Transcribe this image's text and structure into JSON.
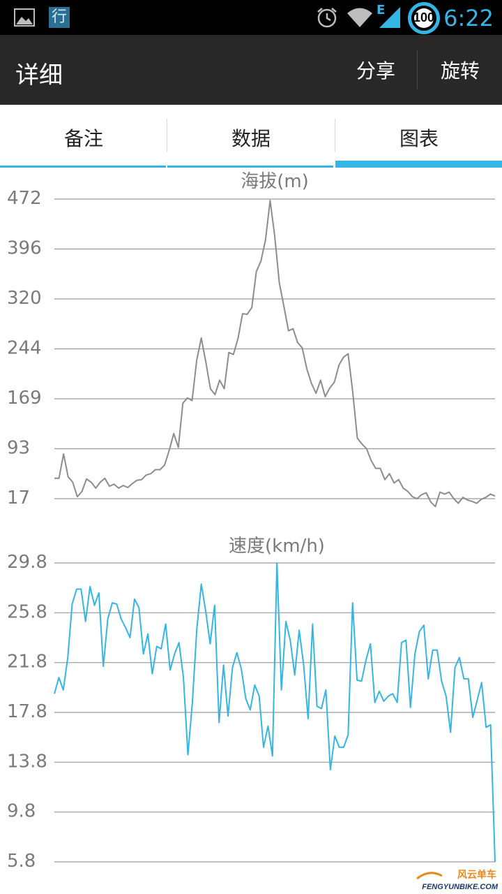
{
  "status_bar": {
    "time": "6:22",
    "battery": "100",
    "notification_char": "行",
    "network": "E",
    "icons": [
      "image-icon",
      "app-notification-icon",
      "alarm-icon",
      "wifi-icon",
      "signal-icon",
      "battery-icon"
    ]
  },
  "action_bar": {
    "title": "详细",
    "share_label": "分享",
    "rotate_label": "旋转"
  },
  "tabs": [
    {
      "label": "备注",
      "selected": false
    },
    {
      "label": "数据",
      "selected": false
    },
    {
      "label": "图表",
      "selected": true
    }
  ],
  "watermark": {
    "cn": "风云单车",
    "en": "FENGYUNBIKE.COM"
  },
  "chart_data": [
    {
      "type": "line",
      "title": "海拔(m)",
      "color": "#8c8c8c",
      "y_ticks": [
        "472",
        "396",
        "320",
        "244",
        "169",
        "93",
        "17"
      ],
      "ylim": [
        17,
        472
      ],
      "grid": true,
      "values": [
        48,
        48,
        85,
        50,
        42,
        20,
        28,
        47,
        42,
        33,
        42,
        48,
        36,
        39,
        33,
        37,
        34,
        40,
        45,
        46,
        53,
        55,
        61,
        61,
        68,
        90,
        116,
        95,
        162,
        170,
        166,
        227,
        261,
        224,
        184,
        175,
        197,
        184,
        239,
        236,
        260,
        298,
        297,
        307,
        362,
        378,
        410,
        470,
        416,
        345,
        309,
        272,
        275,
        254,
        246,
        214,
        192,
        177,
        197,
        172,
        185,
        194,
        220,
        232,
        237,
        179,
        109,
        100,
        93,
        75,
        63,
        63,
        46,
        55,
        41,
        46,
        33,
        28,
        20,
        17,
        23,
        26,
        12,
        5,
        27,
        24,
        27,
        17,
        10,
        19,
        15,
        13,
        10,
        16,
        19,
        24,
        21
      ]
    },
    {
      "type": "line",
      "title": "速度(km/h)",
      "color": "#33b5e5",
      "y_ticks": [
        "29.8",
        "25.8",
        "21.8",
        "17.8",
        "13.8",
        "9.8",
        "5.8"
      ],
      "ylim": [
        5.8,
        29.8
      ],
      "grid": true,
      "values": [
        19.3,
        20.6,
        19.6,
        22.2,
        26.5,
        27.7,
        27.7,
        25.1,
        27.9,
        26.4,
        27.4,
        21.5,
        25.3,
        26.6,
        26.5,
        25.3,
        24.6,
        23.8,
        26.9,
        26.2,
        22.5,
        24.1,
        20.9,
        23.1,
        22.9,
        24.9,
        21.2,
        22.5,
        23.4,
        20.6,
        14.4,
        18.6,
        24.5,
        28.1,
        25.9,
        23.3,
        26.4,
        17.0,
        21.6,
        17.5,
        21.4,
        22.6,
        21.3,
        18.9,
        18.0,
        20.0,
        19.1,
        15.0,
        16.7,
        14.3,
        29.8,
        19.6,
        25.1,
        23.6,
        20.8,
        24.4,
        21.6,
        17.3,
        24.9,
        18.3,
        18.1,
        19.6,
        13.2,
        15.9,
        15.0,
        15.0,
        16.0,
        26.6,
        20.4,
        20.3,
        22.0,
        23.3,
        18.6,
        19.5,
        18.7,
        19.1,
        19.3,
        18.6,
        23.4,
        23.6,
        18.2,
        22.5,
        24.3,
        24.8,
        20.5,
        22.8,
        22.8,
        20.3,
        19.1,
        16.2,
        21.4,
        22.2,
        20.5,
        20.5,
        17.4,
        18.8,
        20.2,
        16.6,
        16.8,
        5.8
      ]
    }
  ]
}
